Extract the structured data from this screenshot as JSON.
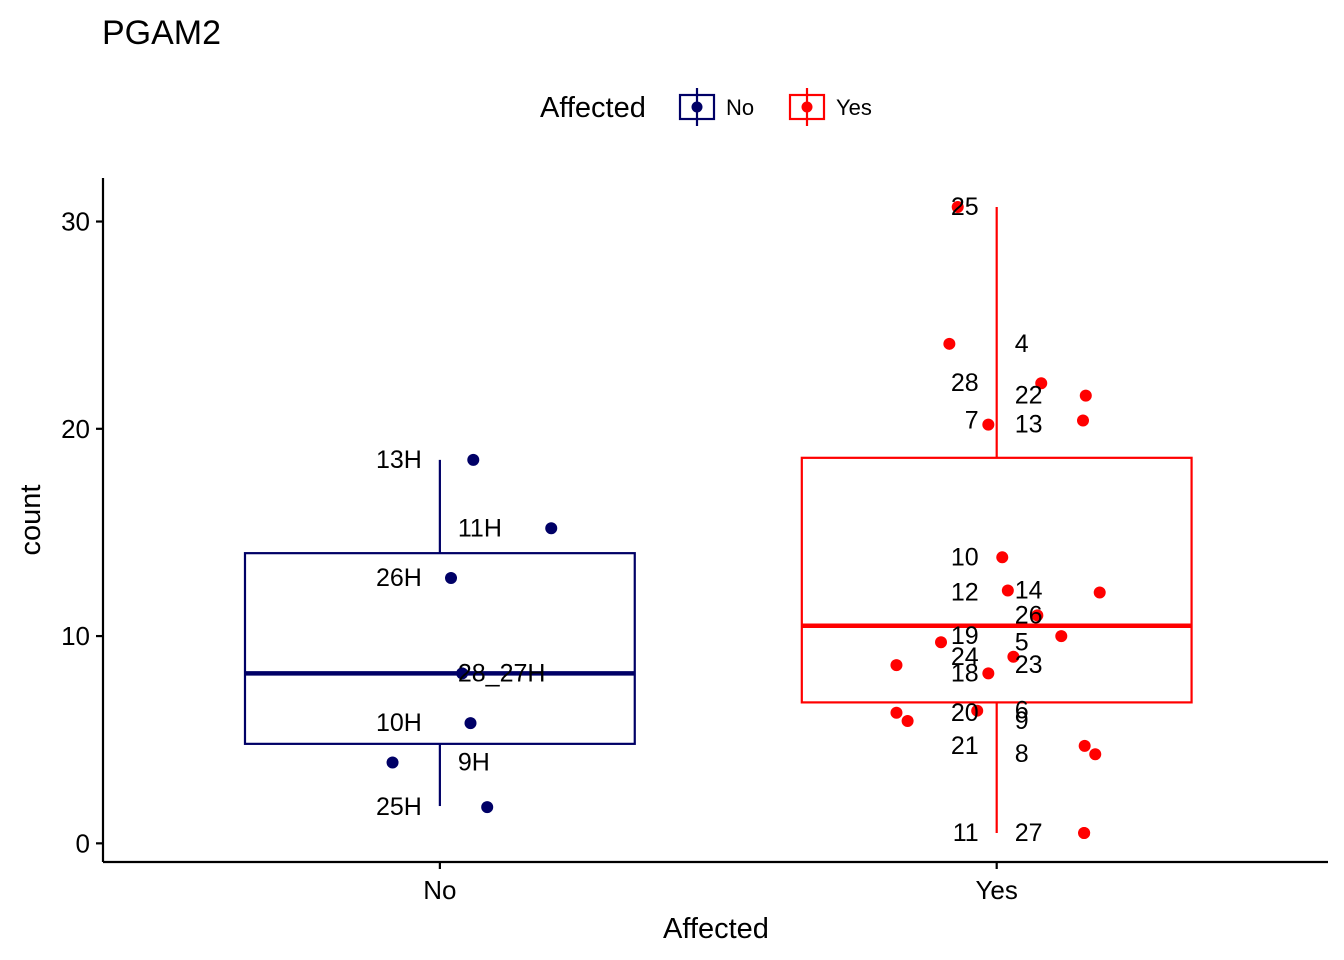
{
  "chart_data": {
    "type": "boxplot",
    "title": "PGAM2",
    "xlabel": "Affected",
    "ylabel": "count",
    "ylim": [
      -0.9,
      32.1
    ],
    "yticks": [
      0,
      10,
      20,
      30
    ],
    "categories": [
      "No",
      "Yes"
    ],
    "legend": {
      "title": "Affected",
      "position": "top",
      "entries": [
        {
          "label": "No",
          "color": "#000066"
        },
        {
          "label": "Yes",
          "color": "#FF0000"
        }
      ]
    },
    "series": [
      {
        "name": "No",
        "color": "#000066",
        "box": {
          "lower_whisker": 1.8,
          "q1": 4.8,
          "median": 8.2,
          "q3": 14.0,
          "upper_whisker": 18.5
        },
        "points": [
          {
            "label": "13H",
            "value": 18.5,
            "jitter": 0.06
          },
          {
            "label": "11H",
            "value": 15.2,
            "jitter": 0.2
          },
          {
            "label": "26H",
            "value": 12.8,
            "jitter": 0.02
          },
          {
            "label": "28_27H",
            "value": 8.2,
            "jitter": 0.04
          },
          {
            "label": "10H",
            "value": 5.8,
            "jitter": 0.055
          },
          {
            "label": "9H",
            "value": 3.9,
            "jitter": -0.085
          },
          {
            "label": "25H",
            "value": 1.75,
            "jitter": 0.085
          }
        ]
      },
      {
        "name": "Yes",
        "color": "#FF0000",
        "box": {
          "lower_whisker": 0.5,
          "q1": 6.8,
          "median": 10.5,
          "q3": 18.6,
          "upper_whisker": 30.7
        },
        "points": [
          {
            "label": "25",
            "value": 30.7,
            "jitter": -0.07
          },
          {
            "label": "4",
            "value": 24.1,
            "jitter": -0.085
          },
          {
            "label": "28",
            "value": 22.2,
            "jitter": 0.08
          },
          {
            "label": "22",
            "value": 21.6,
            "jitter": 0.16
          },
          {
            "label": "7",
            "value": 20.4,
            "jitter": 0.155
          },
          {
            "label": "13",
            "value": 20.2,
            "jitter": -0.015
          },
          {
            "label": "10",
            "value": 13.8,
            "jitter": 0.01
          },
          {
            "label": "14",
            "value": 12.2,
            "jitter": 0.02
          },
          {
            "label": "12",
            "value": 12.1,
            "jitter": 0.185
          },
          {
            "label": "26",
            "value": 11.0,
            "jitter": 0.073
          },
          {
            "label": "19",
            "value": 10.0,
            "jitter": 0.116
          },
          {
            "label": "5",
            "value": 9.7,
            "jitter": -0.1
          },
          {
            "label": "24",
            "value": 9.0,
            "jitter": 0.03
          },
          {
            "label": "23",
            "value": 8.6,
            "jitter": -0.18
          },
          {
            "label": "18",
            "value": 8.2,
            "jitter": -0.015
          },
          {
            "label": "6",
            "value": 6.4,
            "jitter": -0.035
          },
          {
            "label": "20",
            "value": 6.3,
            "jitter": -0.18
          },
          {
            "label": "9",
            "value": 5.9,
            "jitter": -0.16
          },
          {
            "label": "21",
            "value": 4.7,
            "jitter": 0.158
          },
          {
            "label": "8",
            "value": 4.3,
            "jitter": 0.177
          },
          {
            "label": "11",
            "value": 0.5,
            "jitter": 0.157
          },
          {
            "label": "27",
            "value": 0.5,
            "jitter": 0.157
          }
        ]
      }
    ]
  }
}
